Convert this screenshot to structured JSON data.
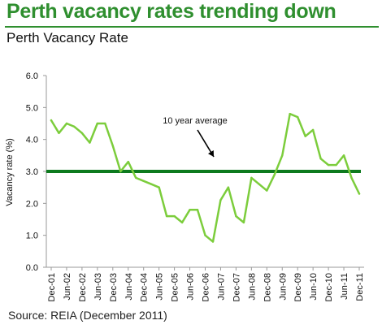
{
  "header": {
    "headline": "Perth vacancy rates trending down",
    "subtitle": "Perth Vacancy Rate"
  },
  "footer": {
    "source": "Source: REIA (December 2011)"
  },
  "colors": {
    "headline": "#2f8f2f",
    "series_line": "#7ccd3c",
    "average_line": "#0d7a1e",
    "axis": "#999999"
  },
  "chart_data": {
    "type": "line",
    "title": "Perth Vacancy Rate",
    "xlabel": "",
    "ylabel": "Vacancy rate (%)",
    "ylim": [
      0,
      6
    ],
    "yticks": [
      "0.0",
      "1.0",
      "2.0",
      "3.0",
      "4.0",
      "5.0",
      "6.0"
    ],
    "x_tick_labels": [
      "Dec-01",
      "Jun-02",
      "Dec-02",
      "Jun-03",
      "Dec-03",
      "Jun-04",
      "Dec-04",
      "Jun-05",
      "Dec-05",
      "Jun-06",
      "Dec-06",
      "Jun-07",
      "Dec-07",
      "Jun-08",
      "Dec-08",
      "Jun-09",
      "Dec-09",
      "Jun-10",
      "Dec-10",
      "Jun-11",
      "Dec-11"
    ],
    "grid": false,
    "series": [
      {
        "values": [
          [
            "Dec-01",
            4.6
          ],
          [
            "Mar-02",
            4.2
          ],
          [
            "Jun-02",
            4.5
          ],
          [
            "Sep-02",
            4.4
          ],
          [
            "Dec-02",
            4.2
          ],
          [
            "Mar-03",
            3.9
          ],
          [
            "Jun-03",
            4.5
          ],
          [
            "Sep-03",
            4.5
          ],
          [
            "Dec-03",
            3.8
          ],
          [
            "Mar-04",
            3.0
          ],
          [
            "Jun-04",
            3.3
          ],
          [
            "Sep-04",
            2.8
          ],
          [
            "Dec-04",
            2.7
          ],
          [
            "Mar-05",
            2.6
          ],
          [
            "Jun-05",
            2.5
          ],
          [
            "Sep-05",
            1.6
          ],
          [
            "Dec-05",
            1.6
          ],
          [
            "Mar-06",
            1.4
          ],
          [
            "Jun-06",
            1.8
          ],
          [
            "Sep-06",
            1.8
          ],
          [
            "Dec-06",
            1.0
          ],
          [
            "Mar-07",
            0.8
          ],
          [
            "Jun-07",
            2.1
          ],
          [
            "Sep-07",
            2.5
          ],
          [
            "Dec-07",
            1.6
          ],
          [
            "Mar-08",
            1.4
          ],
          [
            "Jun-08",
            2.8
          ],
          [
            "Sep-08",
            2.6
          ],
          [
            "Dec-08",
            2.4
          ],
          [
            "Mar-09",
            2.9
          ],
          [
            "Jun-09",
            3.5
          ],
          [
            "Sep-09",
            4.8
          ],
          [
            "Dec-09",
            4.7
          ],
          [
            "Mar-10",
            4.1
          ],
          [
            "Jun-10",
            4.3
          ],
          [
            "Sep-10",
            3.4
          ],
          [
            "Dec-10",
            3.2
          ],
          [
            "Mar-11",
            3.2
          ],
          [
            "Jun-11",
            3.5
          ],
          [
            "Sep-11",
            2.8
          ],
          [
            "Dec-11",
            2.3
          ]
        ]
      }
    ],
    "reference_lines": [
      {
        "label": "10 year average",
        "value": 3.0
      }
    ]
  }
}
